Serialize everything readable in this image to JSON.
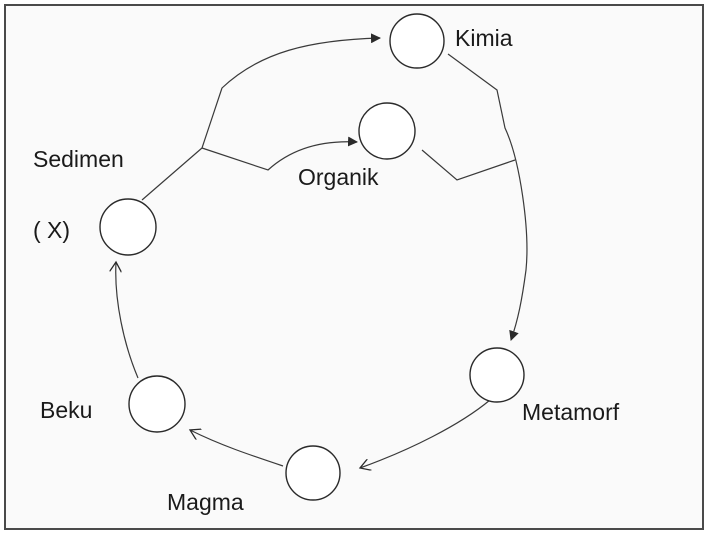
{
  "labels": {
    "kimia": "Kimia",
    "organik": "Organik",
    "sedimen": "Sedimen",
    "x_marker": "( X)",
    "beku": "Beku",
    "magma": "Magma",
    "metamorf": "Metamorf"
  }
}
